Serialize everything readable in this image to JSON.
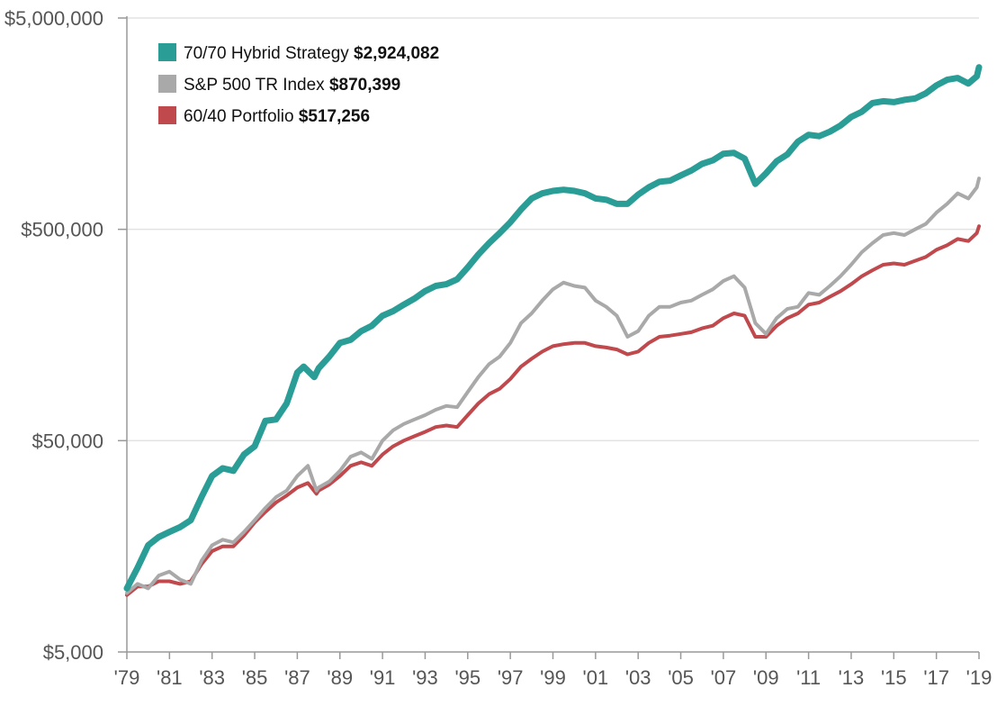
{
  "chart_data": {
    "type": "line",
    "title": "",
    "xlabel": "",
    "ylabel": "",
    "y_scale": "log",
    "ylim": [
      5000,
      5000000
    ],
    "xlim": [
      1979,
      2019
    ],
    "grid": true,
    "legend_position": "top-left",
    "y_ticks": [
      {
        "value": 5000,
        "label": "$5,000"
      },
      {
        "value": 50000,
        "label": "$50,000"
      },
      {
        "value": 500000,
        "label": "$500,000"
      },
      {
        "value": 5000000,
        "label": "$5,000,000"
      }
    ],
    "x_ticks": [
      {
        "value": 1979,
        "label": "'79"
      },
      {
        "value": 1981,
        "label": "'81"
      },
      {
        "value": 1983,
        "label": "'83"
      },
      {
        "value": 1985,
        "label": "'85"
      },
      {
        "value": 1987,
        "label": "'87"
      },
      {
        "value": 1989,
        "label": "'89"
      },
      {
        "value": 1991,
        "label": "'91"
      },
      {
        "value": 1993,
        "label": "'93"
      },
      {
        "value": 1995,
        "label": "'95"
      },
      {
        "value": 1997,
        "label": "'97"
      },
      {
        "value": 1999,
        "label": "'99"
      },
      {
        "value": 2001,
        "label": "'01"
      },
      {
        "value": 2003,
        "label": "'03"
      },
      {
        "value": 2005,
        "label": "'05"
      },
      {
        "value": 2007,
        "label": "'07"
      },
      {
        "value": 2009,
        "label": "'09"
      },
      {
        "value": 2011,
        "label": "'11"
      },
      {
        "value": 2013,
        "label": "'13"
      },
      {
        "value": 2015,
        "label": "'15"
      },
      {
        "value": 2017,
        "label": "'17"
      },
      {
        "value": 2019,
        "label": "'19"
      }
    ],
    "series": [
      {
        "name": "70/70 Hybrid Strategy",
        "value_label": "$2,924,082",
        "color": "#2a9d96",
        "points": [
          [
            1979.0,
            10000
          ],
          [
            1979.5,
            12500
          ],
          [
            1980.0,
            16000
          ],
          [
            1980.5,
            17500
          ],
          [
            1981.0,
            18500
          ],
          [
            1981.5,
            19500
          ],
          [
            1982.0,
            21000
          ],
          [
            1982.5,
            27000
          ],
          [
            1983.0,
            34000
          ],
          [
            1983.5,
            37000
          ],
          [
            1984.0,
            36000
          ],
          [
            1984.5,
            43000
          ],
          [
            1985.0,
            47000
          ],
          [
            1985.5,
            62000
          ],
          [
            1986.0,
            63000
          ],
          [
            1986.5,
            75000
          ],
          [
            1987.0,
            105000
          ],
          [
            1987.3,
            112000
          ],
          [
            1987.8,
            100000
          ],
          [
            1988.0,
            110000
          ],
          [
            1988.5,
            125000
          ],
          [
            1989.0,
            145000
          ],
          [
            1989.5,
            150000
          ],
          [
            1990.0,
            165000
          ],
          [
            1990.5,
            175000
          ],
          [
            1991.0,
            195000
          ],
          [
            1991.5,
            205000
          ],
          [
            1992.0,
            220000
          ],
          [
            1992.5,
            235000
          ],
          [
            1993.0,
            255000
          ],
          [
            1993.5,
            270000
          ],
          [
            1994.0,
            275000
          ],
          [
            1994.5,
            290000
          ],
          [
            1995.0,
            330000
          ],
          [
            1995.5,
            380000
          ],
          [
            1996.0,
            430000
          ],
          [
            1996.5,
            480000
          ],
          [
            1997.0,
            540000
          ],
          [
            1997.5,
            620000
          ],
          [
            1998.0,
            700000
          ],
          [
            1998.5,
            740000
          ],
          [
            1999.0,
            760000
          ],
          [
            1999.5,
            770000
          ],
          [
            2000.0,
            760000
          ],
          [
            2000.5,
            740000
          ],
          [
            2001.0,
            700000
          ],
          [
            2001.5,
            690000
          ],
          [
            2002.0,
            660000
          ],
          [
            2002.5,
            660000
          ],
          [
            2003.0,
            730000
          ],
          [
            2003.5,
            790000
          ],
          [
            2004.0,
            840000
          ],
          [
            2004.5,
            850000
          ],
          [
            2005.0,
            900000
          ],
          [
            2005.5,
            950000
          ],
          [
            2006.0,
            1020000
          ],
          [
            2006.5,
            1060000
          ],
          [
            2007.0,
            1140000
          ],
          [
            2007.5,
            1150000
          ],
          [
            2008.0,
            1080000
          ],
          [
            2008.5,
            820000
          ],
          [
            2009.0,
            920000
          ],
          [
            2009.5,
            1050000
          ],
          [
            2010.0,
            1130000
          ],
          [
            2010.5,
            1300000
          ],
          [
            2011.0,
            1400000
          ],
          [
            2011.5,
            1380000
          ],
          [
            2012.0,
            1450000
          ],
          [
            2012.5,
            1550000
          ],
          [
            2013.0,
            1700000
          ],
          [
            2013.5,
            1800000
          ],
          [
            2014.0,
            1980000
          ],
          [
            2014.5,
            2020000
          ],
          [
            2015.0,
            2000000
          ],
          [
            2015.5,
            2050000
          ],
          [
            2016.0,
            2080000
          ],
          [
            2016.5,
            2200000
          ],
          [
            2017.0,
            2400000
          ],
          [
            2017.5,
            2550000
          ],
          [
            2018.0,
            2600000
          ],
          [
            2018.5,
            2450000
          ],
          [
            2018.9,
            2650000
          ],
          [
            2019.0,
            2924082
          ]
        ]
      },
      {
        "name": "S&P 500 TR Index",
        "value_label": "$870,399",
        "color": "#a9a9a9",
        "points": [
          [
            1979.0,
            9500
          ],
          [
            1979.5,
            10500
          ],
          [
            1980.0,
            10000
          ],
          [
            1980.5,
            11500
          ],
          [
            1981.0,
            12000
          ],
          [
            1981.5,
            11000
          ],
          [
            1982.0,
            10500
          ],
          [
            1982.5,
            13500
          ],
          [
            1983.0,
            16000
          ],
          [
            1983.5,
            17000
          ],
          [
            1984.0,
            16500
          ],
          [
            1984.5,
            18500
          ],
          [
            1985.0,
            21000
          ],
          [
            1985.5,
            24000
          ],
          [
            1986.0,
            27000
          ],
          [
            1986.5,
            29000
          ],
          [
            1987.0,
            34000
          ],
          [
            1987.5,
            38000
          ],
          [
            1987.9,
            29000
          ],
          [
            1988.0,
            30000
          ],
          [
            1988.5,
            32000
          ],
          [
            1989.0,
            36000
          ],
          [
            1989.5,
            42000
          ],
          [
            1990.0,
            44000
          ],
          [
            1990.5,
            41000
          ],
          [
            1991.0,
            50000
          ],
          [
            1991.5,
            56000
          ],
          [
            1992.0,
            60000
          ],
          [
            1992.5,
            63000
          ],
          [
            1993.0,
            66000
          ],
          [
            1993.5,
            70000
          ],
          [
            1994.0,
            73000
          ],
          [
            1994.5,
            72000
          ],
          [
            1995.0,
            85000
          ],
          [
            1995.5,
            100000
          ],
          [
            1996.0,
            115000
          ],
          [
            1996.5,
            125000
          ],
          [
            1997.0,
            145000
          ],
          [
            1997.5,
            180000
          ],
          [
            1998.0,
            200000
          ],
          [
            1998.5,
            230000
          ],
          [
            1999.0,
            260000
          ],
          [
            1999.5,
            280000
          ],
          [
            2000.0,
            270000
          ],
          [
            2000.5,
            265000
          ],
          [
            2001.0,
            230000
          ],
          [
            2001.5,
            215000
          ],
          [
            2002.0,
            195000
          ],
          [
            2002.5,
            155000
          ],
          [
            2003.0,
            165000
          ],
          [
            2003.5,
            195000
          ],
          [
            2004.0,
            215000
          ],
          [
            2004.5,
            215000
          ],
          [
            2005.0,
            225000
          ],
          [
            2005.5,
            230000
          ],
          [
            2006.0,
            245000
          ],
          [
            2006.5,
            260000
          ],
          [
            2007.0,
            285000
          ],
          [
            2007.5,
            300000
          ],
          [
            2008.0,
            265000
          ],
          [
            2008.5,
            180000
          ],
          [
            2009.0,
            160000
          ],
          [
            2009.5,
            190000
          ],
          [
            2010.0,
            210000
          ],
          [
            2010.5,
            215000
          ],
          [
            2011.0,
            250000
          ],
          [
            2011.5,
            245000
          ],
          [
            2012.0,
            270000
          ],
          [
            2012.5,
            300000
          ],
          [
            2013.0,
            340000
          ],
          [
            2013.5,
            390000
          ],
          [
            2014.0,
            430000
          ],
          [
            2014.5,
            470000
          ],
          [
            2015.0,
            480000
          ],
          [
            2015.5,
            470000
          ],
          [
            2016.0,
            500000
          ],
          [
            2016.5,
            530000
          ],
          [
            2017.0,
            600000
          ],
          [
            2017.5,
            660000
          ],
          [
            2018.0,
            740000
          ],
          [
            2018.5,
            700000
          ],
          [
            2018.9,
            790000
          ],
          [
            2019.0,
            870399
          ]
        ]
      },
      {
        "name": "60/40 Portfolio",
        "value_label": "$517,256",
        "color": "#c0494d",
        "points": [
          [
            1979.0,
            9300
          ],
          [
            1979.5,
            10200
          ],
          [
            1980.0,
            10200
          ],
          [
            1980.5,
            10800
          ],
          [
            1981.0,
            10800
          ],
          [
            1981.5,
            10500
          ],
          [
            1982.0,
            10800
          ],
          [
            1982.5,
            13000
          ],
          [
            1983.0,
            15000
          ],
          [
            1983.5,
            15800
          ],
          [
            1984.0,
            15800
          ],
          [
            1984.5,
            17800
          ],
          [
            1985.0,
            20500
          ],
          [
            1985.5,
            23000
          ],
          [
            1986.0,
            25500
          ],
          [
            1986.5,
            27500
          ],
          [
            1987.0,
            30000
          ],
          [
            1987.5,
            31500
          ],
          [
            1987.9,
            28000
          ],
          [
            1988.0,
            29000
          ],
          [
            1988.5,
            31000
          ],
          [
            1989.0,
            34000
          ],
          [
            1989.5,
            38000
          ],
          [
            1990.0,
            39500
          ],
          [
            1990.5,
            38000
          ],
          [
            1991.0,
            43000
          ],
          [
            1991.5,
            47000
          ],
          [
            1992.0,
            50000
          ],
          [
            1992.5,
            52500
          ],
          [
            1993.0,
            55000
          ],
          [
            1993.5,
            58000
          ],
          [
            1994.0,
            59000
          ],
          [
            1994.5,
            58000
          ],
          [
            1995.0,
            66000
          ],
          [
            1995.5,
            75000
          ],
          [
            1996.0,
            83000
          ],
          [
            1996.5,
            88000
          ],
          [
            1997.0,
            98000
          ],
          [
            1997.5,
            112000
          ],
          [
            1998.0,
            122000
          ],
          [
            1998.5,
            132000
          ],
          [
            1999.0,
            140000
          ],
          [
            1999.5,
            143000
          ],
          [
            2000.0,
            145000
          ],
          [
            2000.5,
            145000
          ],
          [
            2001.0,
            140000
          ],
          [
            2001.5,
            138000
          ],
          [
            2002.0,
            135000
          ],
          [
            2002.5,
            128000
          ],
          [
            2003.0,
            132000
          ],
          [
            2003.5,
            145000
          ],
          [
            2004.0,
            155000
          ],
          [
            2004.5,
            157000
          ],
          [
            2005.0,
            160000
          ],
          [
            2005.5,
            163000
          ],
          [
            2006.0,
            170000
          ],
          [
            2006.5,
            175000
          ],
          [
            2007.0,
            190000
          ],
          [
            2007.5,
            200000
          ],
          [
            2008.0,
            195000
          ],
          [
            2008.5,
            155000
          ],
          [
            2009.0,
            155000
          ],
          [
            2009.5,
            175000
          ],
          [
            2010.0,
            190000
          ],
          [
            2010.5,
            200000
          ],
          [
            2011.0,
            220000
          ],
          [
            2011.5,
            225000
          ],
          [
            2012.0,
            240000
          ],
          [
            2012.5,
            255000
          ],
          [
            2013.0,
            275000
          ],
          [
            2013.5,
            300000
          ],
          [
            2014.0,
            320000
          ],
          [
            2014.5,
            340000
          ],
          [
            2015.0,
            345000
          ],
          [
            2015.5,
            340000
          ],
          [
            2016.0,
            355000
          ],
          [
            2016.5,
            370000
          ],
          [
            2017.0,
            400000
          ],
          [
            2017.5,
            420000
          ],
          [
            2018.0,
            450000
          ],
          [
            2018.5,
            440000
          ],
          [
            2018.9,
            480000
          ],
          [
            2019.0,
            517256
          ]
        ]
      }
    ]
  }
}
